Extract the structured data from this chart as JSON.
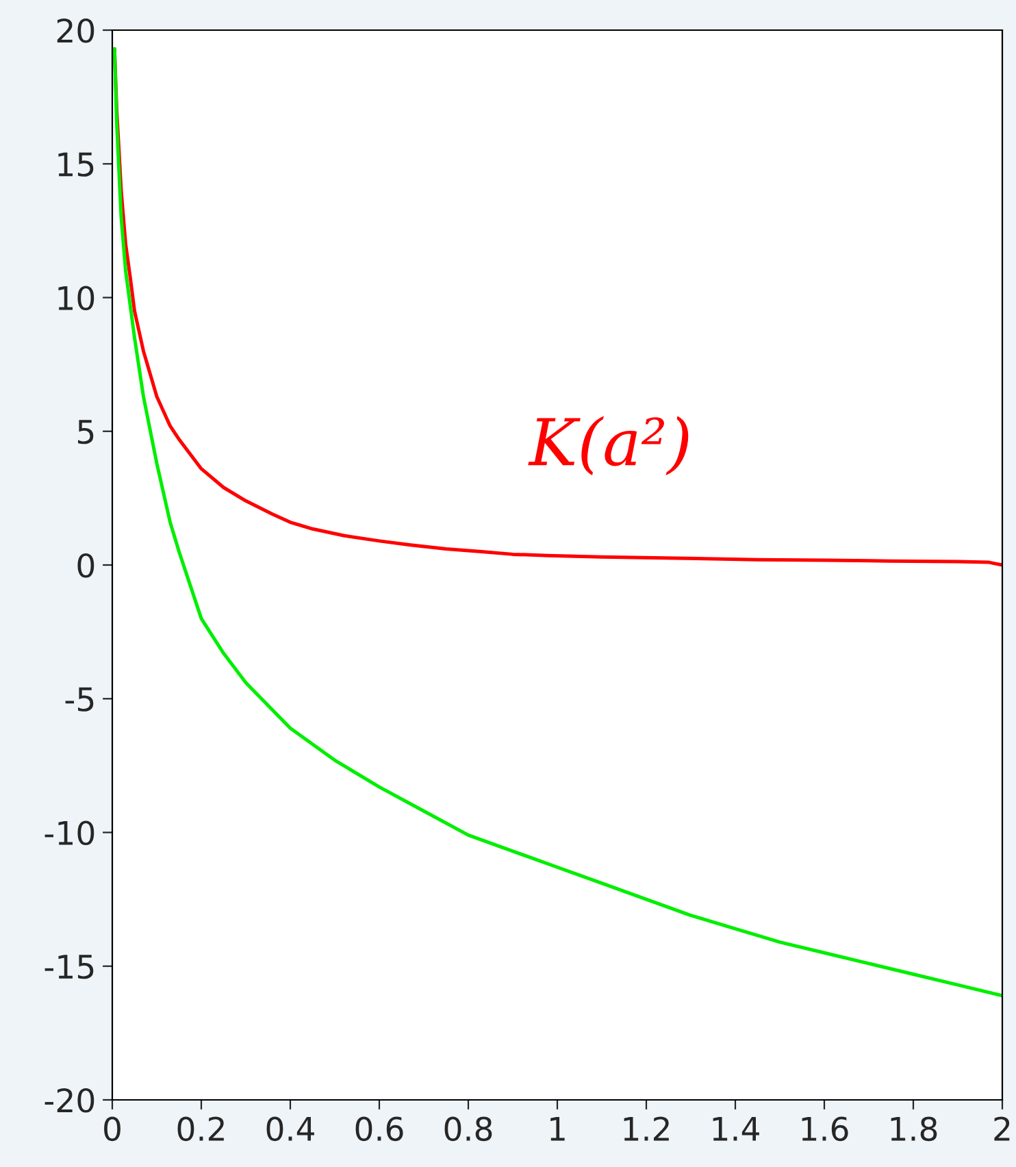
{
  "chart_data": {
    "type": "line",
    "xlim": [
      0,
      2
    ],
    "ylim": [
      -20,
      20
    ],
    "xticks": [
      0,
      0.2,
      0.4,
      0.6,
      0.8,
      1,
      1.2,
      1.4,
      1.6,
      1.8,
      2
    ],
    "yticks": [
      -20,
      -15,
      -10,
      -5,
      0,
      5,
      10,
      15,
      20
    ],
    "grid": false,
    "marker": "none",
    "line_style": "solid",
    "series": [
      {
        "name": "K(a²)",
        "color": "#ff0000",
        "x": [
          0.005,
          0.01,
          0.02,
          0.03,
          0.04,
          0.05,
          0.07,
          0.1,
          0.13,
          0.15,
          0.2,
          0.25,
          0.3,
          0.36,
          0.4,
          0.45,
          0.52,
          0.6,
          0.67,
          0.75,
          0.83,
          0.9,
          0.98,
          1.1,
          1.29,
          1.45,
          1.6,
          1.75,
          1.9,
          1.97,
          2.0
        ],
        "values": [
          19.3,
          17,
          14,
          12,
          10.8,
          9.5,
          8,
          6.3,
          5.2,
          4.7,
          3.6,
          2.9,
          2.4,
          1.9,
          1.6,
          1.35,
          1.1,
          0.9,
          0.75,
          0.6,
          0.5,
          0.4,
          0.35,
          0.3,
          0.25,
          0.2,
          0.18,
          0.15,
          0.13,
          0.1,
          0.0
        ]
      },
      {
        "color": "#00ee00",
        "x": [
          0.005,
          0.01,
          0.02,
          0.03,
          0.05,
          0.07,
          0.1,
          0.13,
          0.15,
          0.2,
          0.25,
          0.3,
          0.4,
          0.5,
          0.6,
          0.7,
          0.8,
          0.9,
          1.0,
          1.1,
          1.2,
          1.3,
          1.4,
          1.5,
          1.6,
          1.7,
          1.8,
          1.9,
          2.0
        ],
        "values": [
          19.3,
          16.5,
          13,
          11,
          8.5,
          6.3,
          3.8,
          1.6,
          0.5,
          -2,
          -3.3,
          -4.4,
          -6.1,
          -7.3,
          -8.3,
          -9.2,
          -10.1,
          -10.7,
          -11.3,
          -11.9,
          -12.5,
          -13.1,
          -13.6,
          -14.1,
          -14.5,
          -14.9,
          -15.3,
          -15.7,
          -16.1
        ]
      }
    ]
  }
}
